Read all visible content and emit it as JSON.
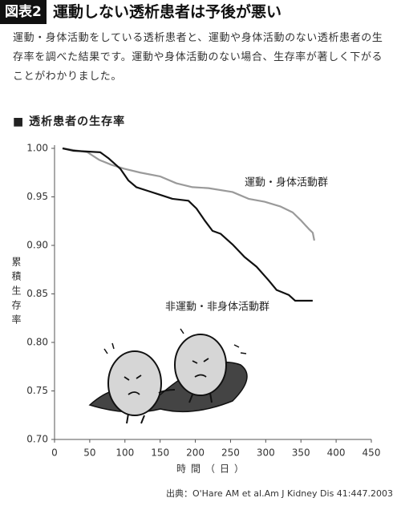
{
  "badge": "図表2",
  "chart_data": {
    "type": "line",
    "title": "運動しない透析患者は予後が悪い",
    "subtitle": "運動・身体活動をしている透析患者と、運動や身体活動のない透析患者の生存率を調べた結果です。運動や身体活動のない場合、生存率が著しく下がることがわかりました。",
    "heading": "■ 透析患者の生存率",
    "y_label": "累積生存率",
    "x_label": "時間（日）",
    "source": "出典：O'Hare AM et al.Am J Kidney Dis 41:447.2003",
    "xlim": [
      0,
      450
    ],
    "xticks": [
      0,
      50,
      100,
      150,
      200,
      250,
      300,
      350,
      400,
      450
    ],
    "ylim": [
      0.7,
      1.0
    ],
    "yticks": [
      {
        "value": 0.7,
        "label": "0.70"
      },
      {
        "value": 0.75,
        "label": "0.75"
      },
      {
        "value": 0.8,
        "label": "0.80"
      },
      {
        "value": 0.85,
        "label": "0.85"
      },
      {
        "value": 0.9,
        "label": "0.90"
      },
      {
        "value": 0.95,
        "label": "0.95"
      },
      {
        "value": 1.0,
        "label": "1.00"
      }
    ],
    "series": [
      {
        "name": "運動・身体活動群",
        "color": "#9a9a9a",
        "x": [
          11.4,
          46.7,
          63.8,
          80.9,
          99.1,
          121.9,
          150.4,
          173.1,
          195.9,
          218.7,
          252.8,
          275.6,
          298.4,
          321.2,
          338.3,
          349.7,
          361.1,
          366.8,
          369
        ],
        "values": [
          1.0,
          0.996,
          0.988,
          0.983,
          0.979,
          0.975,
          0.971,
          0.964,
          0.96,
          0.959,
          0.955,
          0.948,
          0.945,
          0.94,
          0.934,
          0.926,
          0.917,
          0.913,
          0.905
        ]
      },
      {
        "name": "非運動・非身体活動群",
        "color": "#111111",
        "x": [
          11.4,
          27.3,
          64.9,
          76.3,
          93.4,
          104.8,
          116.2,
          133.3,
          150.4,
          167.5,
          190.2,
          201.6,
          213,
          224.4,
          235.8,
          252.8,
          269.9,
          287,
          304.1,
          315.5,
          332.6,
          341.7,
          366.7
        ],
        "values": [
          1.0,
          0.9975,
          0.996,
          0.99,
          0.979,
          0.967,
          0.96,
          0.956,
          0.952,
          0.948,
          0.946,
          0.938,
          0.926,
          0.915,
          0.912,
          0.901,
          0.888,
          0.878,
          0.864,
          0.854,
          0.849,
          0.843,
          0.843
        ]
      }
    ]
  }
}
